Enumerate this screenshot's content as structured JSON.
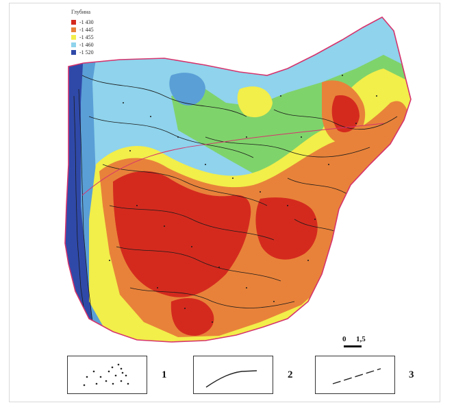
{
  "legend": {
    "title": "Глубина",
    "items": [
      {
        "label": "-1 430",
        "color": "#d42a1e"
      },
      {
        "label": "-1 445",
        "color": "#e8823a"
      },
      {
        "label": "-1 455",
        "color": "#f2ee4a"
      },
      {
        "label": "-1 460",
        "color": "#8fd3ec"
      },
      {
        "label": "-1 520",
        "color": "#2f49a8"
      }
    ]
  },
  "scale_bar": {
    "zero": "0",
    "value": "1,5"
  },
  "key": {
    "items": [
      {
        "number": "1",
        "symbol": "dots-icon"
      },
      {
        "number": "2",
        "symbol": "solid-curve-icon"
      },
      {
        "number": "3",
        "symbol": "dashed-line-icon"
      }
    ]
  },
  "colors": {
    "boundary": "#d6336c",
    "contour": "#1a1a1a",
    "deep_blue": "#2f49a8",
    "light_blue": "#8fd3ec",
    "green": "#7fd36b",
    "yellow": "#f2ee4a",
    "orange": "#e8823a",
    "red": "#d42a1e"
  }
}
